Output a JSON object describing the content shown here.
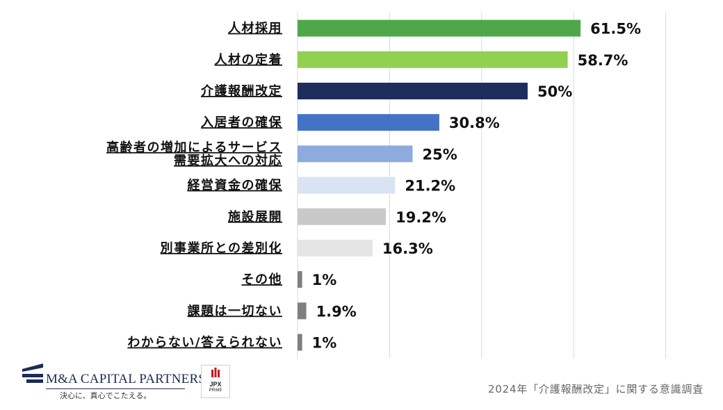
{
  "chart_data": {
    "type": "bar",
    "orientation": "horizontal",
    "categories": [
      [
        "人材採用"
      ],
      [
        "人材の定着"
      ],
      [
        "介護報酬改定"
      ],
      [
        "入居者の確保"
      ],
      [
        "高齢者の増加によるサービス",
        "需要拡大への対応"
      ],
      [
        "経営資金の確保"
      ],
      [
        "施設展開"
      ],
      [
        "別事業所との差別化"
      ],
      [
        "その他"
      ],
      [
        "課題は一切ない"
      ],
      [
        "わからない/答えられない"
      ]
    ],
    "values": [
      61.5,
      58.7,
      50,
      30.8,
      25,
      21.2,
      19.2,
      16.3,
      1,
      1.9,
      1
    ],
    "value_labels": [
      "61.5%",
      "58.7%",
      "50%",
      "30.8%",
      "25%",
      "21.2%",
      "19.2%",
      "16.3%",
      "1%",
      "1.9%",
      "1%"
    ],
    "colors": [
      "#4ea84a",
      "#92d050",
      "#1f2d5c",
      "#4472c4",
      "#8faadc",
      "#dae3f3",
      "#c9c9c9",
      "#e5e5e5",
      "#7f7f7f",
      "#7f7f7f",
      "#7f7f7f"
    ],
    "xlim": [
      0,
      80
    ],
    "grid": true
  },
  "logo": {
    "name": "M&A CAPITAL PARTNERS",
    "tagline": "決心に、真心でこたえる。"
  },
  "jpx": {
    "name": "JPX",
    "sub": "PRIME"
  },
  "footer": "2024年「介護報酬改定」に関する意識調査"
}
